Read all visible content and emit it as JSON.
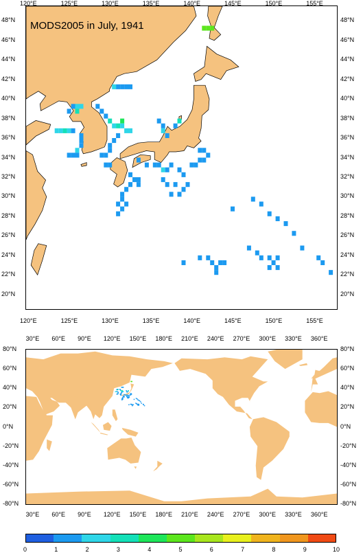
{
  "top_map": {
    "title": "MODS2005 in July, 1941",
    "lon_ticks": [
      "120°E",
      "125°E",
      "130°E",
      "135°E",
      "140°E",
      "145°E",
      "150°E",
      "155°E"
    ],
    "lat_ticks": [
      "48°N",
      "46°N",
      "44°N",
      "42°N",
      "40°N",
      "38°N",
      "36°N",
      "34°N",
      "32°N",
      "30°N",
      "28°N",
      "26°N",
      "24°N",
      "22°N",
      "20°N"
    ],
    "lon_range": [
      119.5,
      157.5
    ],
    "lat_range": [
      18.5,
      49.5
    ]
  },
  "bottom_map": {
    "lon_ticks": [
      "30°E",
      "60°E",
      "90°E",
      "120°E",
      "150°E",
      "180°E",
      "210°E",
      "240°E",
      "270°E",
      "300°E",
      "330°E",
      "360°E"
    ],
    "lat_ticks": [
      "80°N",
      "60°N",
      "40°N",
      "20°N",
      "0°N",
      "-20°N",
      "-40°N",
      "-60°N",
      "-80°N"
    ],
    "lon_range": [
      20,
      380
    ],
    "lat_range": [
      -80,
      80
    ]
  },
  "colorbar": {
    "labels": [
      "0",
      "1",
      "2",
      "3",
      "4",
      "5",
      "6",
      "7",
      "8",
      "9",
      "10"
    ],
    "colors": [
      "#1f5fe0",
      "#1c9af0",
      "#2fd6e8",
      "#14e0b8",
      "#1ee65a",
      "#5ce61e",
      "#a8e61e",
      "#e8f01e",
      "#f0b41e",
      "#f0961e",
      "#f04a14"
    ]
  },
  "colors": {
    "land": "#f5c27f",
    "ocean": "#ffffff"
  },
  "chart_data": {
    "type": "heatmap",
    "title": "MODS2005 in July, 1941",
    "observations_deg": [
      {
        "lon": 141.0,
        "lat": 47.5,
        "v": 5
      },
      {
        "lon": 141.5,
        "lat": 47.5,
        "v": 5
      },
      {
        "lon": 142.0,
        "lat": 47.5,
        "v": 5
      },
      {
        "lon": 125.0,
        "lat": 39.5,
        "v": 1
      },
      {
        "lon": 125.5,
        "lat": 39.5,
        "v": 2
      },
      {
        "lon": 126.0,
        "lat": 39.5,
        "v": 2
      },
      {
        "lon": 124.5,
        "lat": 39.0,
        "v": 1
      },
      {
        "lon": 125.5,
        "lat": 39.0,
        "v": 3
      },
      {
        "lon": 123.0,
        "lat": 37.0,
        "v": 2
      },
      {
        "lon": 123.5,
        "lat": 37.0,
        "v": 2
      },
      {
        "lon": 124.0,
        "lat": 37.0,
        "v": 3
      },
      {
        "lon": 124.5,
        "lat": 37.0,
        "v": 2
      },
      {
        "lon": 125.0,
        "lat": 37.0,
        "v": 1
      },
      {
        "lon": 126.0,
        "lat": 36.5,
        "v": 1
      },
      {
        "lon": 126.0,
        "lat": 36.0,
        "v": 1
      },
      {
        "lon": 126.0,
        "lat": 35.5,
        "v": 1
      },
      {
        "lon": 125.5,
        "lat": 35.0,
        "v": 2
      },
      {
        "lon": 124.5,
        "lat": 34.5,
        "v": 1
      },
      {
        "lon": 125.0,
        "lat": 34.5,
        "v": 1
      },
      {
        "lon": 125.5,
        "lat": 34.5,
        "v": 1
      },
      {
        "lon": 128.0,
        "lat": 39.5,
        "v": 1
      },
      {
        "lon": 128.5,
        "lat": 39.0,
        "v": 1
      },
      {
        "lon": 129.0,
        "lat": 38.5,
        "v": 1
      },
      {
        "lon": 129.5,
        "lat": 38.0,
        "v": 3
      },
      {
        "lon": 130.0,
        "lat": 37.5,
        "v": 2
      },
      {
        "lon": 130.5,
        "lat": 37.5,
        "v": 3
      },
      {
        "lon": 131.0,
        "lat": 38.0,
        "v": 4
      },
      {
        "lon": 131.0,
        "lat": 37.5,
        "v": 2
      },
      {
        "lon": 131.5,
        "lat": 37.0,
        "v": 2
      },
      {
        "lon": 132.0,
        "lat": 37.0,
        "v": 2
      },
      {
        "lon": 130.5,
        "lat": 36.5,
        "v": 1
      },
      {
        "lon": 130.0,
        "lat": 36.0,
        "v": 1
      },
      {
        "lon": 129.5,
        "lat": 35.5,
        "v": 1
      },
      {
        "lon": 129.5,
        "lat": 35.0,
        "v": 1
      },
      {
        "lon": 129.0,
        "lat": 34.5,
        "v": 1
      },
      {
        "lon": 128.5,
        "lat": 34.5,
        "v": 1
      },
      {
        "lon": 129.0,
        "lat": 33.5,
        "v": 1
      },
      {
        "lon": 129.5,
        "lat": 33.5,
        "v": 1
      },
      {
        "lon": 130.0,
        "lat": 41.5,
        "v": 2
      },
      {
        "lon": 130.5,
        "lat": 41.5,
        "v": 1
      },
      {
        "lon": 131.0,
        "lat": 41.5,
        "v": 1
      },
      {
        "lon": 131.5,
        "lat": 41.5,
        "v": 1
      },
      {
        "lon": 132.0,
        "lat": 41.5,
        "v": 1
      },
      {
        "lon": 135.5,
        "lat": 38.0,
        "v": 1
      },
      {
        "lon": 136.0,
        "lat": 37.5,
        "v": 1
      },
      {
        "lon": 136.0,
        "lat": 37.0,
        "v": 2
      },
      {
        "lon": 136.5,
        "lat": 36.5,
        "v": 1
      },
      {
        "lon": 137.5,
        "lat": 37.5,
        "v": 1
      },
      {
        "lon": 138.0,
        "lat": 38.0,
        "v": 3
      },
      {
        "lon": 140.5,
        "lat": 35.0,
        "v": 1
      },
      {
        "lon": 141.0,
        "lat": 35.0,
        "v": 1
      },
      {
        "lon": 141.5,
        "lat": 34.5,
        "v": 1
      },
      {
        "lon": 140.5,
        "lat": 34.0,
        "v": 1
      },
      {
        "lon": 141.0,
        "lat": 34.0,
        "v": 1
      },
      {
        "lon": 139.5,
        "lat": 33.5,
        "v": 1
      },
      {
        "lon": 140.0,
        "lat": 33.5,
        "v": 1
      },
      {
        "lon": 133.0,
        "lat": 34.0,
        "v": 1
      },
      {
        "lon": 134.0,
        "lat": 33.5,
        "v": 1
      },
      {
        "lon": 135.0,
        "lat": 33.5,
        "v": 1
      },
      {
        "lon": 135.5,
        "lat": 33.5,
        "v": 1
      },
      {
        "lon": 136.0,
        "lat": 33.0,
        "v": 2
      },
      {
        "lon": 136.5,
        "lat": 33.0,
        "v": 1
      },
      {
        "lon": 137.0,
        "lat": 33.5,
        "v": 1
      },
      {
        "lon": 138.0,
        "lat": 33.0,
        "v": 1
      },
      {
        "lon": 138.5,
        "lat": 32.5,
        "v": 1
      },
      {
        "lon": 136.0,
        "lat": 32.0,
        "v": 1
      },
      {
        "lon": 136.5,
        "lat": 31.5,
        "v": 1
      },
      {
        "lon": 137.5,
        "lat": 31.5,
        "v": 1
      },
      {
        "lon": 138.5,
        "lat": 31.0,
        "v": 1
      },
      {
        "lon": 139.0,
        "lat": 31.5,
        "v": 1
      },
      {
        "lon": 137.0,
        "lat": 30.5,
        "v": 1
      },
      {
        "lon": 138.0,
        "lat": 30.5,
        "v": 1
      },
      {
        "lon": 132.0,
        "lat": 32.5,
        "v": 1
      },
      {
        "lon": 132.5,
        "lat": 32.0,
        "v": 1
      },
      {
        "lon": 133.0,
        "lat": 32.0,
        "v": 1
      },
      {
        "lon": 133.0,
        "lat": 31.5,
        "v": 1
      },
      {
        "lon": 132.0,
        "lat": 31.5,
        "v": 1
      },
      {
        "lon": 131.5,
        "lat": 31.0,
        "v": 1
      },
      {
        "lon": 131.0,
        "lat": 30.5,
        "v": 1
      },
      {
        "lon": 131.0,
        "lat": 30.0,
        "v": 1
      },
      {
        "lon": 131.5,
        "lat": 29.5,
        "v": 1
      },
      {
        "lon": 130.5,
        "lat": 29.5,
        "v": 1
      },
      {
        "lon": 131.0,
        "lat": 29.0,
        "v": 1
      },
      {
        "lon": 130.5,
        "lat": 28.5,
        "v": 1
      },
      {
        "lon": 144.5,
        "lat": 29.0,
        "v": 1
      },
      {
        "lon": 147.0,
        "lat": 30.0,
        "v": 1
      },
      {
        "lon": 148.0,
        "lat": 29.5,
        "v": 1
      },
      {
        "lon": 149.0,
        "lat": 28.5,
        "v": 1
      },
      {
        "lon": 150.0,
        "lat": 28.0,
        "v": 1
      },
      {
        "lon": 151.0,
        "lat": 27.5,
        "v": 1
      },
      {
        "lon": 152.0,
        "lat": 26.5,
        "v": 1
      },
      {
        "lon": 153.0,
        "lat": 25.0,
        "v": 1
      },
      {
        "lon": 146.5,
        "lat": 25.0,
        "v": 1
      },
      {
        "lon": 147.5,
        "lat": 24.5,
        "v": 1
      },
      {
        "lon": 148.0,
        "lat": 24.0,
        "v": 1
      },
      {
        "lon": 149.0,
        "lat": 24.0,
        "v": 1
      },
      {
        "lon": 149.5,
        "lat": 23.5,
        "v": 1
      },
      {
        "lon": 150.0,
        "lat": 24.0,
        "v": 1
      },
      {
        "lon": 149.0,
        "lat": 23.0,
        "v": 1
      },
      {
        "lon": 150.0,
        "lat": 23.0,
        "v": 1
      },
      {
        "lon": 155.0,
        "lat": 24.0,
        "v": 1
      },
      {
        "lon": 155.5,
        "lat": 23.5,
        "v": 1
      },
      {
        "lon": 156.5,
        "lat": 22.5,
        "v": 1
      },
      {
        "lon": 138.5,
        "lat": 23.5,
        "v": 1
      },
      {
        "lon": 140.5,
        "lat": 24.0,
        "v": 1
      },
      {
        "lon": 141.5,
        "lat": 24.0,
        "v": 1
      },
      {
        "lon": 142.0,
        "lat": 23.5,
        "v": 1
      },
      {
        "lon": 142.5,
        "lat": 23.0,
        "v": 1
      },
      {
        "lon": 142.5,
        "lat": 22.5,
        "v": 1
      },
      {
        "lon": 143.0,
        "lat": 23.5,
        "v": 1
      },
      {
        "lon": 143.5,
        "lat": 23.5,
        "v": 1
      }
    ]
  }
}
